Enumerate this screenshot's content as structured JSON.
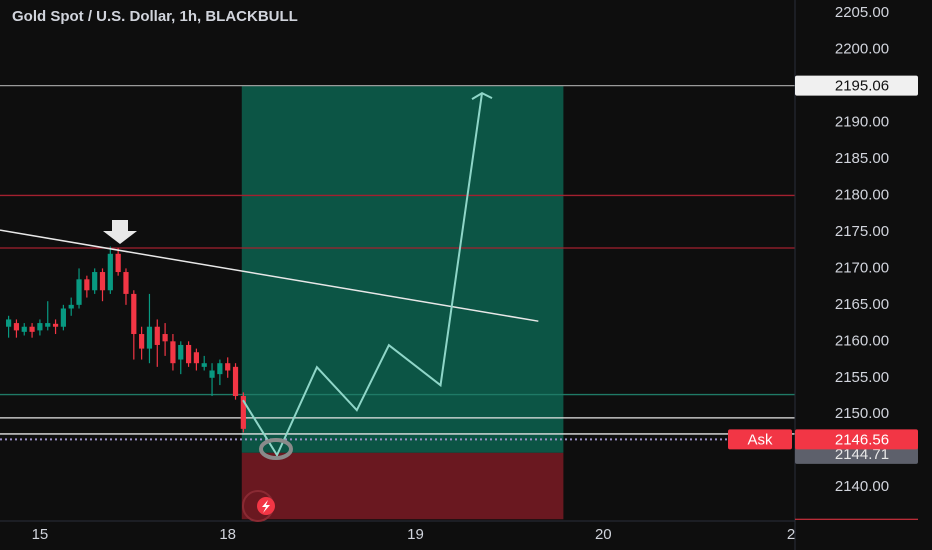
{
  "chart_data": {
    "type": "candlestick",
    "title": "Gold Spot / U.S. Dollar, 1h, BLACKBULL",
    "xlim": [
      -5.1,
      96.5
    ],
    "xticks": [
      {
        "value": 0,
        "label": "15"
      },
      {
        "value": 24,
        "label": "18"
      },
      {
        "value": 48,
        "label": "19"
      },
      {
        "value": 72,
        "label": "20"
      },
      {
        "value": 96,
        "label": "2"
      }
    ],
    "ylim": [
      2135.5,
      2206.8
    ],
    "yticks": [
      {
        "value": 2205,
        "label": "2205.00"
      },
      {
        "value": 2200,
        "label": "2200.00"
      },
      {
        "value": 2190,
        "label": "2190.00"
      },
      {
        "value": 2185,
        "label": "2185.00"
      },
      {
        "value": 2180,
        "label": "2180.00"
      },
      {
        "value": 2175,
        "label": "2175.00"
      },
      {
        "value": 2170,
        "label": "2170.00"
      },
      {
        "value": 2165,
        "label": "2165.00"
      },
      {
        "value": 2160,
        "label": "2160.00"
      },
      {
        "value": 2155,
        "label": "2155.00"
      },
      {
        "value": 2150,
        "label": "2150.00"
      },
      {
        "value": 2140,
        "label": "2140.00"
      }
    ],
    "up_color": "#089981",
    "down_color": "#f23645",
    "series": [
      {
        "x": [
          -4,
          -3,
          -2,
          -1,
          0,
          1,
          2,
          3,
          4,
          5,
          6,
          7,
          8,
          9,
          10,
          11,
          12,
          13,
          14,
          15,
          16,
          17,
          18,
          19,
          20,
          21,
          22,
          23,
          24,
          25,
          26
        ],
        "open": [
          2162,
          2162.5,
          2161.3,
          2162,
          2161.5,
          2162,
          2162.4,
          2162,
          2164.5,
          2165,
          2168.5,
          2167,
          2169.5,
          2167,
          2172,
          2169.5,
          2166.5,
          2161,
          2159,
          2162,
          2161,
          2160,
          2157.5,
          2159.5,
          2158.5,
          2156.5,
          2155,
          2155.5,
          2157,
          2156.5,
          2152.5
        ],
        "high": [
          2163.5,
          2163,
          2162.5,
          2162.5,
          2163,
          2165.5,
          2163,
          2165,
          2166,
          2170,
          2169,
          2170,
          2170,
          2173,
          2172.8,
          2170,
          2167,
          2162,
          2166.5,
          2163,
          2162.5,
          2161,
          2160,
          2160,
          2159,
          2158,
          2157,
          2157.5,
          2157.8,
          2157,
          2153
        ],
        "low": [
          2160.5,
          2160.5,
          2160.8,
          2160.5,
          2160.8,
          2161.5,
          2161,
          2161.5,
          2163.5,
          2164.5,
          2166,
          2166.5,
          2165.5,
          2166.5,
          2169,
          2165,
          2157.5,
          2157.5,
          2157,
          2156.5,
          2158,
          2156,
          2155.5,
          2156.5,
          2156,
          2156,
          2152.5,
          2154,
          2155,
          2152,
          2147.5
        ],
        "close": [
          2163,
          2161.5,
          2162,
          2161.3,
          2162.5,
          2162.5,
          2162,
          2164.5,
          2165,
          2168.5,
          2167,
          2169.5,
          2167,
          2172,
          2169.5,
          2166.5,
          2161,
          2159,
          2162,
          2159.5,
          2160,
          2157,
          2159.5,
          2157,
          2157,
          2157,
          2156,
          2157,
          2156,
          2152.5,
          2148
        ]
      }
    ],
    "levels": [
      {
        "value": 2195.06,
        "color": "#9a9a9a"
      },
      {
        "value": 2180,
        "color": "#a3202f"
      },
      {
        "value": 2172.8,
        "color": "#a3202f"
      },
      {
        "value": 2152.7,
        "color": "#1f7a66"
      },
      {
        "value": 2149.5,
        "color": "#e6e6e6"
      },
      {
        "value": 2147.3,
        "color": "#e6e6e6"
      }
    ],
    "position": {
      "x_start": 25.8,
      "x_end": 66.9,
      "target": 2195.06,
      "entry": 2144.71,
      "stop": 2135.6,
      "profit_color": "#0c5545",
      "loss_color": "#6a1820"
    },
    "trendline": {
      "x": [
        -5.1,
        63.7
      ],
      "y": [
        2175.24,
        2162.76
      ],
      "color": "#e8e8e8"
    },
    "projection": {
      "x": [
        25.96,
        30.3,
        35.4,
        40.5,
        44.6,
        51.2,
        56.5
      ],
      "y": [
        2151.93,
        2144.39,
        2156.45,
        2150.56,
        2159.47,
        2153.98,
        2194.03
      ],
      "color": "#8fd6c8"
    },
    "target_label": 2195.06,
    "ask": {
      "label": "Ask",
      "value": 2146.56
    },
    "entry_label": 2144.71
  }
}
